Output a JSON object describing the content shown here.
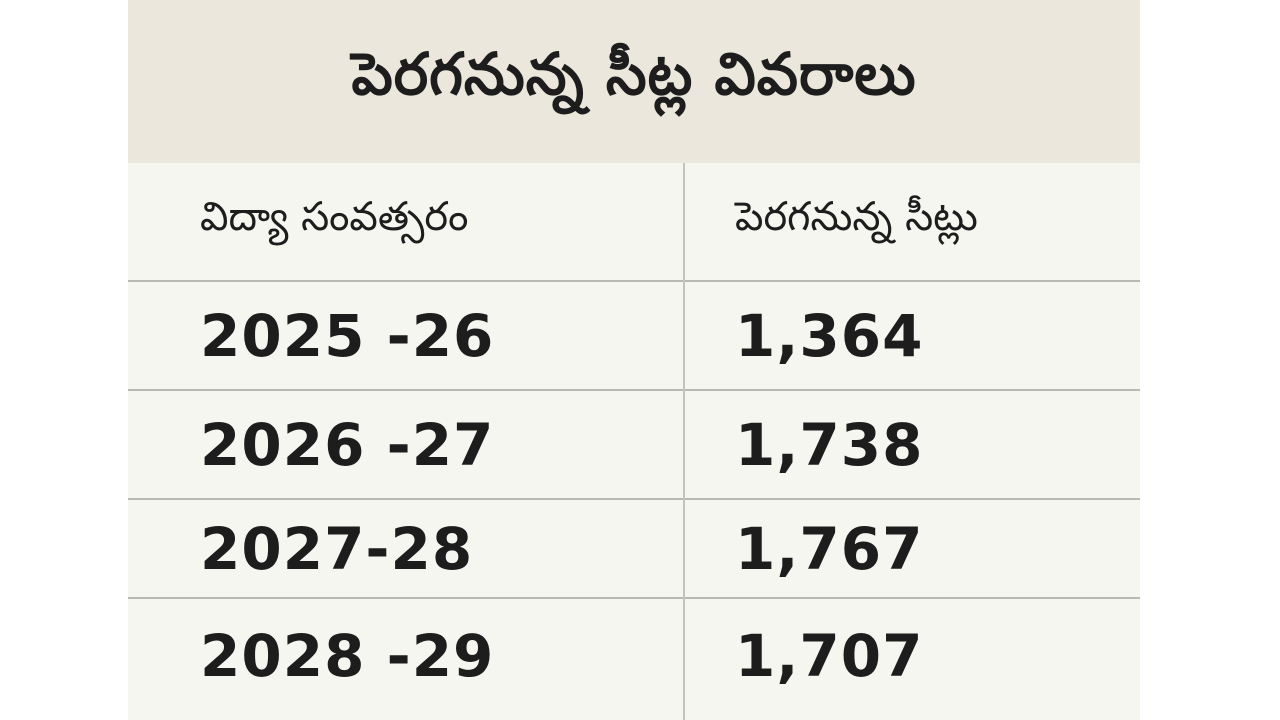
{
  "title": "పెరగనున్న సీట్ల వివరాలు",
  "table": {
    "headers": [
      "విద్యా సంవత్సరం",
      "పెరగనున్న సీట్లు"
    ],
    "rows": [
      {
        "year": "2025 -26",
        "seats": "1,364"
      },
      {
        "year": "2026 -27",
        "seats": "1,738"
      },
      {
        "year": "2027-28",
        "seats": "1,767"
      },
      {
        "year": "2028 -29",
        "seats": "1,707"
      }
    ]
  },
  "colors": {
    "title_background": "#ece7dc",
    "table_background": "#f6f6f1",
    "text": "#1d1d1d",
    "grid_line": "#b9b9b4"
  }
}
